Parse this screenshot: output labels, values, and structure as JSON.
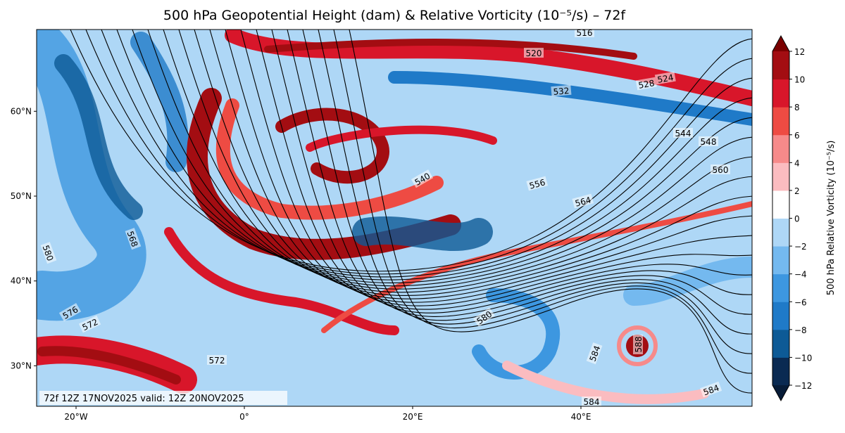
{
  "title": "500 hPa Geopotential Height (dam) & Relative Vorticity (10⁻⁵/s) – 72f",
  "footer": "72f 12Z 17NOV2025 valid: 12Z 20NOV2025",
  "map": {
    "lon_ticks": [
      {
        "value": -20,
        "label": "20°W"
      },
      {
        "value": 0,
        "label": "0°"
      },
      {
        "value": 20,
        "label": "20°E"
      },
      {
        "value": 40,
        "label": "40°E"
      }
    ],
    "lat_ticks": [
      {
        "value": 30,
        "label": "30°N"
      },
      {
        "value": 40,
        "label": "40°N"
      },
      {
        "value": 50,
        "label": "50°N"
      },
      {
        "value": 60,
        "label": "60°N"
      }
    ],
    "contour_labels": [
      516,
      520,
      524,
      528,
      532,
      544,
      548,
      560,
      556,
      564,
      540,
      568,
      580,
      576,
      572,
      572,
      580,
      584,
      588,
      584,
      584
    ]
  },
  "colorbar": {
    "label": "500 hPa Relative Vorticity (10⁻⁵/s)",
    "ticks": [
      {
        "value": -12,
        "label": "−12"
      },
      {
        "value": -10,
        "label": "−10"
      },
      {
        "value": -8,
        "label": "−8"
      },
      {
        "value": -6,
        "label": "−6"
      },
      {
        "value": -4,
        "label": "−4"
      },
      {
        "value": -2,
        "label": "−2"
      },
      0,
      2,
      4,
      6,
      8,
      10,
      12
    ],
    "colors": [
      "#0a2a52",
      "#0d5a96",
      "#1f7ac8",
      "#3d97e0",
      "#74b9ef",
      "#aed7f6",
      "#ffffff",
      "#fbbcc0",
      "#f68a8a",
      "#ee4b43",
      "#d8162a",
      "#a30d12"
    ],
    "under_color": "#071c38",
    "over_color": "#7a0000"
  }
}
